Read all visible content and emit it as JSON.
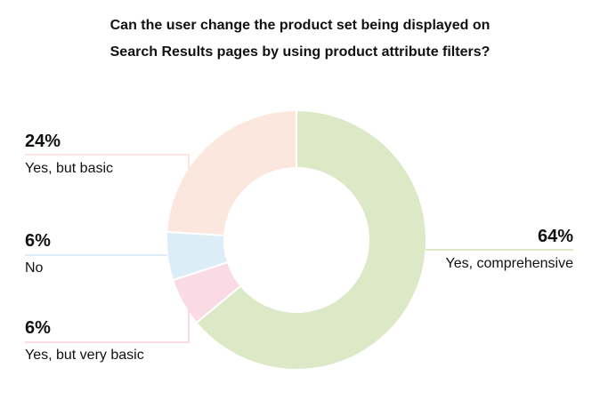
{
  "chart_data": {
    "type": "donut",
    "title_line1": "Can the user change the product set being displayed on",
    "title_line2": "Search Results pages by using product attribute filters?",
    "slices": [
      {
        "label": "Yes, comprehensive",
        "value": 64,
        "display": "64%",
        "color": "#dde9c6"
      },
      {
        "label": "Yes, but very basic",
        "value": 6,
        "display": "6%",
        "color": "#fadbe5"
      },
      {
        "label": "No",
        "value": 6,
        "display": "6%",
        "color": "#dcedf8"
      },
      {
        "label": "Yes, but basic",
        "value": 24,
        "display": "24%",
        "color": "#fbe7de"
      }
    ]
  }
}
